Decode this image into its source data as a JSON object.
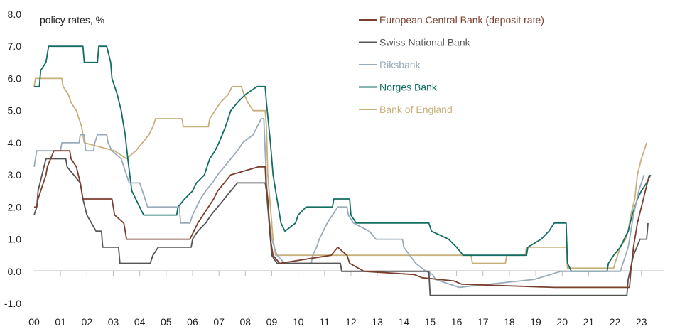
{
  "chart_data": {
    "type": "line",
    "ylabel": "policy rates, %",
    "ylim": [
      -1.0,
      8.0
    ],
    "yticks": [
      "8.0",
      "7.0",
      "6.0",
      "5.0",
      "4.0",
      "3.0",
      "2.0",
      "1.0",
      "0.0",
      "-1.0"
    ],
    "xlim": [
      2000.0,
      2023.6
    ],
    "xticks": [
      "00",
      "01",
      "02",
      "03",
      "04",
      "05",
      "06",
      "07",
      "08",
      "09",
      "10",
      "11",
      "12",
      "13",
      "14",
      "15",
      "16",
      "17",
      "18",
      "19",
      "20",
      "21",
      "22",
      "23"
    ],
    "grid": false,
    "legend_position": "top-right",
    "series": [
      {
        "name": "European Central Bank (deposit rate)",
        "color": "#7b3f2e",
        "points": [
          [
            2000.0,
            2.0
          ],
          [
            2000.1,
            2.0
          ],
          [
            2000.15,
            2.25
          ],
          [
            2000.25,
            2.5
          ],
          [
            2000.35,
            2.75
          ],
          [
            2000.45,
            3.0
          ],
          [
            2000.5,
            3.25
          ],
          [
            2000.75,
            3.75
          ],
          [
            2001.35,
            3.75
          ],
          [
            2001.4,
            3.5
          ],
          [
            2001.6,
            3.25
          ],
          [
            2001.75,
            2.75
          ],
          [
            2001.85,
            2.25
          ],
          [
            2002.95,
            2.25
          ],
          [
            2003.05,
            1.75
          ],
          [
            2003.4,
            1.5
          ],
          [
            2003.5,
            1.0
          ],
          [
            2005.9,
            1.0
          ],
          [
            2006.05,
            1.25
          ],
          [
            2006.2,
            1.5
          ],
          [
            2006.4,
            1.75
          ],
          [
            2006.6,
            2.0
          ],
          [
            2006.8,
            2.25
          ],
          [
            2006.95,
            2.5
          ],
          [
            2007.2,
            2.75
          ],
          [
            2007.45,
            3.0
          ],
          [
            2008.5,
            3.25
          ],
          [
            2008.75,
            3.25
          ],
          [
            2008.78,
            2.75
          ],
          [
            2008.85,
            2.25
          ],
          [
            2008.95,
            1.0
          ],
          [
            2009.05,
            0.5
          ],
          [
            2009.3,
            0.25
          ],
          [
            2011.25,
            0.5
          ],
          [
            2011.5,
            0.75
          ],
          [
            2011.85,
            0.5
          ],
          [
            2011.95,
            0.25
          ],
          [
            2012.5,
            0.0
          ],
          [
            2014.4,
            -0.1
          ],
          [
            2014.7,
            -0.2
          ],
          [
            2015.9,
            -0.3
          ],
          [
            2016.2,
            -0.4
          ],
          [
            2019.7,
            -0.5
          ],
          [
            2022.55,
            -0.5
          ],
          [
            2022.6,
            0.0
          ],
          [
            2022.7,
            0.75
          ],
          [
            2022.85,
            1.5
          ],
          [
            2023.0,
            2.0
          ],
          [
            2023.15,
            2.5
          ],
          [
            2023.3,
            3.0
          ]
        ]
      },
      {
        "name": "Swiss National Bank",
        "color": "#555555",
        "points": [
          [
            2000.0,
            1.75
          ],
          [
            2000.1,
            2.0
          ],
          [
            2000.15,
            2.5
          ],
          [
            2000.3,
            3.0
          ],
          [
            2000.45,
            3.5
          ],
          [
            2001.2,
            3.5
          ],
          [
            2001.25,
            3.25
          ],
          [
            2001.75,
            2.75
          ],
          [
            2001.85,
            2.25
          ],
          [
            2002.0,
            1.75
          ],
          [
            2002.35,
            1.25
          ],
          [
            2002.55,
            1.25
          ],
          [
            2002.6,
            0.75
          ],
          [
            2003.2,
            0.75
          ],
          [
            2003.25,
            0.25
          ],
          [
            2004.4,
            0.25
          ],
          [
            2004.5,
            0.5
          ],
          [
            2004.7,
            0.75
          ],
          [
            2005.95,
            0.75
          ],
          [
            2006.0,
            1.0
          ],
          [
            2006.2,
            1.25
          ],
          [
            2006.5,
            1.5
          ],
          [
            2006.7,
            1.75
          ],
          [
            2006.95,
            2.0
          ],
          [
            2007.2,
            2.25
          ],
          [
            2007.45,
            2.5
          ],
          [
            2007.7,
            2.75
          ],
          [
            2008.75,
            2.75
          ],
          [
            2008.8,
            2.5
          ],
          [
            2008.85,
            2.0
          ],
          [
            2008.95,
            1.0
          ],
          [
            2009.0,
            0.5
          ],
          [
            2009.2,
            0.25
          ],
          [
            2011.6,
            0.25
          ],
          [
            2011.65,
            0.0
          ],
          [
            2014.95,
            0.0
          ],
          [
            2015.0,
            -0.75
          ],
          [
            2022.45,
            -0.75
          ],
          [
            2022.5,
            -0.25
          ],
          [
            2022.7,
            0.5
          ],
          [
            2022.95,
            1.0
          ],
          [
            2023.2,
            1.0
          ],
          [
            2023.25,
            1.5
          ]
        ]
      },
      {
        "name": "Riksbank",
        "color": "#9aabb9",
        "points": [
          [
            2000.0,
            3.25
          ],
          [
            2000.1,
            3.75
          ],
          [
            2001.0,
            3.75
          ],
          [
            2001.05,
            4.0
          ],
          [
            2001.7,
            4.0
          ],
          [
            2001.75,
            4.25
          ],
          [
            2001.9,
            4.25
          ],
          [
            2001.95,
            3.75
          ],
          [
            2002.25,
            3.75
          ],
          [
            2002.3,
            4.0
          ],
          [
            2002.4,
            4.25
          ],
          [
            2002.75,
            4.25
          ],
          [
            2002.8,
            4.0
          ],
          [
            2002.95,
            3.75
          ],
          [
            2003.3,
            3.5
          ],
          [
            2003.5,
            3.0
          ],
          [
            2003.6,
            2.75
          ],
          [
            2004.0,
            2.75
          ],
          [
            2004.1,
            2.5
          ],
          [
            2004.3,
            2.0
          ],
          [
            2005.5,
            2.0
          ],
          [
            2005.55,
            1.5
          ],
          [
            2005.9,
            1.5
          ],
          [
            2006.0,
            1.75
          ],
          [
            2006.15,
            2.0
          ],
          [
            2006.3,
            2.25
          ],
          [
            2006.5,
            2.5
          ],
          [
            2006.75,
            2.75
          ],
          [
            2006.95,
            3.0
          ],
          [
            2007.2,
            3.25
          ],
          [
            2007.45,
            3.5
          ],
          [
            2007.7,
            3.75
          ],
          [
            2007.9,
            4.0
          ],
          [
            2008.3,
            4.25
          ],
          [
            2008.6,
            4.75
          ],
          [
            2008.7,
            4.75
          ],
          [
            2008.75,
            3.75
          ],
          [
            2008.85,
            2.0
          ],
          [
            2009.0,
            1.0
          ],
          [
            2009.2,
            0.5
          ],
          [
            2009.5,
            0.25
          ],
          [
            2010.5,
            0.25
          ],
          [
            2010.55,
            0.5
          ],
          [
            2010.7,
            0.75
          ],
          [
            2010.8,
            1.0
          ],
          [
            2010.95,
            1.25
          ],
          [
            2011.1,
            1.5
          ],
          [
            2011.3,
            1.75
          ],
          [
            2011.5,
            2.0
          ],
          [
            2011.85,
            2.0
          ],
          [
            2011.9,
            1.75
          ],
          [
            2012.1,
            1.5
          ],
          [
            2012.7,
            1.25
          ],
          [
            2012.95,
            1.0
          ],
          [
            2013.95,
            1.0
          ],
          [
            2014.0,
            0.75
          ],
          [
            2014.45,
            0.25
          ],
          [
            2014.85,
            0.0
          ],
          [
            2015.1,
            -0.1
          ],
          [
            2015.2,
            -0.25
          ],
          [
            2015.55,
            -0.35
          ],
          [
            2016.1,
            -0.5
          ],
          [
            2018.95,
            -0.25
          ],
          [
            2019.95,
            0.0
          ],
          [
            2022.2,
            0.0
          ],
          [
            2022.3,
            0.25
          ],
          [
            2022.5,
            0.75
          ],
          [
            2022.7,
            1.75
          ],
          [
            2022.9,
            2.5
          ],
          [
            2023.1,
            3.0
          ]
        ]
      },
      {
        "name": "Norges Bank",
        "color": "#126d63",
        "points": [
          [
            2000.0,
            5.75
          ],
          [
            2000.2,
            5.75
          ],
          [
            2000.25,
            6.25
          ],
          [
            2000.45,
            6.5
          ],
          [
            2000.55,
            7.0
          ],
          [
            2001.85,
            7.0
          ],
          [
            2001.9,
            6.5
          ],
          [
            2002.4,
            6.5
          ],
          [
            2002.45,
            7.0
          ],
          [
            2002.75,
            7.0
          ],
          [
            2002.9,
            6.5
          ],
          [
            2002.95,
            6.0
          ],
          [
            2003.15,
            5.5
          ],
          [
            2003.3,
            5.0
          ],
          [
            2003.45,
            4.25
          ],
          [
            2003.55,
            3.5
          ],
          [
            2003.7,
            2.5
          ],
          [
            2003.85,
            2.25
          ],
          [
            2004.0,
            2.0
          ],
          [
            2004.15,
            1.75
          ],
          [
            2005.4,
            1.75
          ],
          [
            2005.45,
            2.0
          ],
          [
            2005.7,
            2.25
          ],
          [
            2006.0,
            2.5
          ],
          [
            2006.15,
            2.75
          ],
          [
            2006.45,
            3.0
          ],
          [
            2006.65,
            3.5
          ],
          [
            2006.85,
            3.75
          ],
          [
            2007.0,
            4.0
          ],
          [
            2007.25,
            4.5
          ],
          [
            2007.45,
            5.0
          ],
          [
            2007.7,
            5.25
          ],
          [
            2008.0,
            5.5
          ],
          [
            2008.45,
            5.75
          ],
          [
            2008.75,
            5.75
          ],
          [
            2008.8,
            5.25
          ],
          [
            2008.95,
            4.0
          ],
          [
            2009.05,
            3.0
          ],
          [
            2009.25,
            2.0
          ],
          [
            2009.35,
            1.5
          ],
          [
            2009.5,
            1.25
          ],
          [
            2009.9,
            1.5
          ],
          [
            2010.0,
            1.75
          ],
          [
            2010.3,
            2.0
          ],
          [
            2011.3,
            2.0
          ],
          [
            2011.35,
            2.25
          ],
          [
            2011.95,
            2.25
          ],
          [
            2012.0,
            1.75
          ],
          [
            2012.2,
            1.5
          ],
          [
            2014.95,
            1.5
          ],
          [
            2015.05,
            1.25
          ],
          [
            2015.7,
            1.0
          ],
          [
            2016.0,
            0.75
          ],
          [
            2016.25,
            0.5
          ],
          [
            2018.65,
            0.5
          ],
          [
            2018.7,
            0.75
          ],
          [
            2019.2,
            1.0
          ],
          [
            2019.5,
            1.25
          ],
          [
            2019.7,
            1.5
          ],
          [
            2020.15,
            1.5
          ],
          [
            2020.2,
            0.25
          ],
          [
            2020.35,
            0.0
          ],
          [
            2021.7,
            0.0
          ],
          [
            2021.75,
            0.25
          ],
          [
            2021.95,
            0.5
          ],
          [
            2022.2,
            0.75
          ],
          [
            2022.5,
            1.25
          ],
          [
            2022.65,
            1.75
          ],
          [
            2022.85,
            2.25
          ],
          [
            2023.0,
            2.5
          ],
          [
            2023.2,
            2.75
          ],
          [
            2023.35,
            3.0
          ]
        ]
      },
      {
        "name": "Bank of England",
        "color": "#c8b07a",
        "points": [
          [
            2000.0,
            5.75
          ],
          [
            2000.05,
            6.0
          ],
          [
            2001.05,
            6.0
          ],
          [
            2001.1,
            5.75
          ],
          [
            2001.3,
            5.5
          ],
          [
            2001.4,
            5.25
          ],
          [
            2001.6,
            5.0
          ],
          [
            2001.7,
            4.75
          ],
          [
            2001.8,
            4.5
          ],
          [
            2001.9,
            4.0
          ],
          [
            2003.05,
            3.75
          ],
          [
            2003.5,
            3.5
          ],
          [
            2003.85,
            3.75
          ],
          [
            2004.1,
            4.0
          ],
          [
            2004.35,
            4.25
          ],
          [
            2004.5,
            4.5
          ],
          [
            2004.6,
            4.75
          ],
          [
            2005.6,
            4.75
          ],
          [
            2005.65,
            4.5
          ],
          [
            2006.6,
            4.5
          ],
          [
            2006.65,
            4.75
          ],
          [
            2006.85,
            5.0
          ],
          [
            2007.05,
            5.25
          ],
          [
            2007.35,
            5.5
          ],
          [
            2007.5,
            5.75
          ],
          [
            2007.85,
            5.75
          ],
          [
            2007.95,
            5.5
          ],
          [
            2008.1,
            5.25
          ],
          [
            2008.3,
            5.0
          ],
          [
            2008.75,
            5.0
          ],
          [
            2008.8,
            4.5
          ],
          [
            2008.85,
            3.0
          ],
          [
            2008.95,
            2.0
          ],
          [
            2009.05,
            1.0
          ],
          [
            2009.15,
            0.5
          ],
          [
            2016.55,
            0.5
          ],
          [
            2016.6,
            0.25
          ],
          [
            2017.85,
            0.25
          ],
          [
            2017.9,
            0.5
          ],
          [
            2018.6,
            0.5
          ],
          [
            2018.65,
            0.75
          ],
          [
            2020.15,
            0.75
          ],
          [
            2020.2,
            0.1
          ],
          [
            2021.95,
            0.1
          ],
          [
            2022.0,
            0.25
          ],
          [
            2022.1,
            0.5
          ],
          [
            2022.2,
            0.75
          ],
          [
            2022.4,
            1.0
          ],
          [
            2022.5,
            1.25
          ],
          [
            2022.6,
            1.75
          ],
          [
            2022.75,
            2.25
          ],
          [
            2022.85,
            3.0
          ],
          [
            2023.0,
            3.5
          ],
          [
            2023.1,
            3.75
          ],
          [
            2023.2,
            4.0
          ]
        ]
      }
    ]
  }
}
